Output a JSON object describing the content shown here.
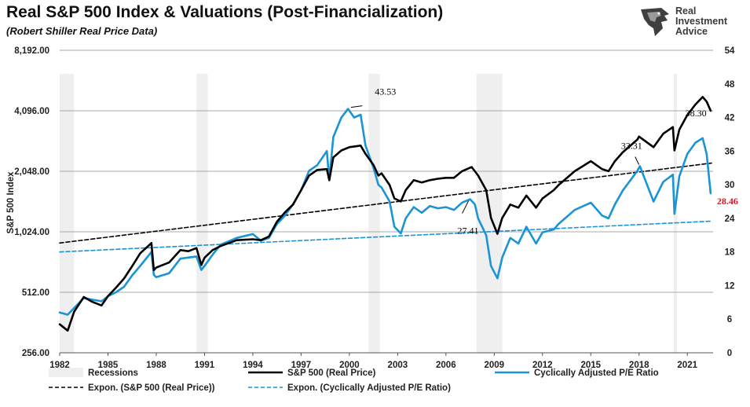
{
  "header": {
    "title": "Real S&P 500 Index & Valuations (Post-Financialization)",
    "subtitle": "(Robert Shiller Real Price Data)"
  },
  "logo": {
    "icon": "eagle-head-icon",
    "lines": [
      "Real",
      "Investment",
      "Advice"
    ]
  },
  "colors": {
    "sp500": "#000000",
    "cape": "#1a94d4",
    "recession": "#efefef",
    "grid": "#8c8c8c",
    "highlight": "#e0141e"
  },
  "chart_data": {
    "type": "line",
    "xlabel": "",
    "ylabel_left": "S&P 500 Index",
    "ylabel_right": "",
    "x_ticks": [
      1982,
      1985,
      1988,
      1991,
      1994,
      1997,
      2000,
      2003,
      2006,
      2009,
      2012,
      2015,
      2018,
      2021
    ],
    "xlim": [
      1982,
      2022.6
    ],
    "y_left_scale": "log2",
    "y_left_ticks": [
      "256.00",
      "512.00",
      "1,024.00",
      "2,048.00",
      "4,096.00",
      "8,192.00"
    ],
    "y_left_tick_values": [
      256,
      512,
      1024,
      2048,
      4096,
      8192
    ],
    "ylim_left": [
      256,
      8192
    ],
    "y_right_ticks": [
      "0",
      "6",
      "12",
      "18",
      "24",
      "30",
      "36",
      "42",
      "48",
      "54"
    ],
    "ylim_right": [
      0,
      54
    ],
    "grid": "horizontal",
    "legend_position": "bottom",
    "recessions": [
      [
        1982.0,
        1982.9
      ],
      [
        1990.5,
        1991.2
      ],
      [
        2001.2,
        2001.9
      ],
      [
        2007.9,
        2009.5
      ],
      [
        2020.15,
        2020.35
      ]
    ],
    "series": [
      {
        "name": "S&P 500 (Real Price)",
        "axis": "left",
        "style": "solid",
        "points": [
          [
            1982.0,
            355
          ],
          [
            1982.5,
            330
          ],
          [
            1982.9,
            410
          ],
          [
            1983.5,
            485
          ],
          [
            1984.0,
            460
          ],
          [
            1984.6,
            440
          ],
          [
            1985.0,
            490
          ],
          [
            1985.5,
            540
          ],
          [
            1986.0,
            600
          ],
          [
            1986.5,
            690
          ],
          [
            1987.0,
            800
          ],
          [
            1987.7,
            900
          ],
          [
            1987.85,
            660
          ],
          [
            1988.0,
            680
          ],
          [
            1988.8,
            720
          ],
          [
            1989.5,
            830
          ],
          [
            1990.0,
            820
          ],
          [
            1990.5,
            850
          ],
          [
            1990.8,
            700
          ],
          [
            1991.0,
            760
          ],
          [
            1991.5,
            830
          ],
          [
            1992.0,
            870
          ],
          [
            1993.0,
            930
          ],
          [
            1994.0,
            940
          ],
          [
            1994.5,
            930
          ],
          [
            1995.0,
            970
          ],
          [
            1995.5,
            1150
          ],
          [
            1996.0,
            1280
          ],
          [
            1996.5,
            1400
          ],
          [
            1997.0,
            1650
          ],
          [
            1997.5,
            1950
          ],
          [
            1998.0,
            2080
          ],
          [
            1998.6,
            2100
          ],
          [
            1998.75,
            1850
          ],
          [
            1999.0,
            2400
          ],
          [
            1999.5,
            2600
          ],
          [
            2000.0,
            2700
          ],
          [
            2000.7,
            2750
          ],
          [
            2001.0,
            2500
          ],
          [
            2001.5,
            2200
          ],
          [
            2001.8,
            1950
          ],
          [
            2002.0,
            2000
          ],
          [
            2002.5,
            1750
          ],
          [
            2002.8,
            1500
          ],
          [
            2003.2,
            1450
          ],
          [
            2003.5,
            1650
          ],
          [
            2004.0,
            1850
          ],
          [
            2004.5,
            1800
          ],
          [
            2005.0,
            1850
          ],
          [
            2005.5,
            1880
          ],
          [
            2006.0,
            1900
          ],
          [
            2006.5,
            1900
          ],
          [
            2007.0,
            2050
          ],
          [
            2007.6,
            2150
          ],
          [
            2008.0,
            1950
          ],
          [
            2008.5,
            1650
          ],
          [
            2008.8,
            1200
          ],
          [
            2009.2,
            1000
          ],
          [
            2009.5,
            1200
          ],
          [
            2010.0,
            1400
          ],
          [
            2010.5,
            1350
          ],
          [
            2011.0,
            1550
          ],
          [
            2011.6,
            1350
          ],
          [
            2012.0,
            1500
          ],
          [
            2012.7,
            1650
          ],
          [
            2013.0,
            1750
          ],
          [
            2014.0,
            2050
          ],
          [
            2015.0,
            2300
          ],
          [
            2015.7,
            2100
          ],
          [
            2016.1,
            2050
          ],
          [
            2016.5,
            2300
          ],
          [
            2017.0,
            2550
          ],
          [
            2017.9,
            2950
          ],
          [
            2018.0,
            3050
          ],
          [
            2018.9,
            2700
          ],
          [
            2019.5,
            3150
          ],
          [
            2020.1,
            3400
          ],
          [
            2020.2,
            2600
          ],
          [
            2020.5,
            3300
          ],
          [
            2021.0,
            3900
          ],
          [
            2021.5,
            4400
          ],
          [
            2021.95,
            4800
          ],
          [
            2022.2,
            4550
          ],
          [
            2022.45,
            4100
          ]
        ]
      },
      {
        "name": "Cyclically Adjusted P/E Ratio",
        "axis": "right",
        "style": "solid",
        "points": [
          [
            1982.0,
            7.2
          ],
          [
            1982.5,
            6.8
          ],
          [
            1982.9,
            8.0
          ],
          [
            1983.5,
            9.8
          ],
          [
            1984.0,
            9.5
          ],
          [
            1984.6,
            9.2
          ],
          [
            1985.0,
            10.1
          ],
          [
            1985.5,
            10.8
          ],
          [
            1986.0,
            11.8
          ],
          [
            1986.5,
            13.8
          ],
          [
            1987.0,
            15.5
          ],
          [
            1987.7,
            18.0
          ],
          [
            1987.85,
            13.9
          ],
          [
            1988.0,
            13.5
          ],
          [
            1988.8,
            14.2
          ],
          [
            1989.5,
            16.8
          ],
          [
            1990.0,
            17.0
          ],
          [
            1990.5,
            17.2
          ],
          [
            1990.8,
            14.8
          ],
          [
            1991.0,
            15.5
          ],
          [
            1991.5,
            17.5
          ],
          [
            1992.0,
            19.3
          ],
          [
            1993.0,
            20.5
          ],
          [
            1994.0,
            21.2
          ],
          [
            1994.5,
            20.0
          ],
          [
            1995.0,
            20.5
          ],
          [
            1995.5,
            23.0
          ],
          [
            1996.0,
            24.5
          ],
          [
            1996.5,
            26.5
          ],
          [
            1997.0,
            29.0
          ],
          [
            1997.5,
            32.5
          ],
          [
            1998.0,
            33.5
          ],
          [
            1998.6,
            36.0
          ],
          [
            1998.75,
            30.8
          ],
          [
            1999.0,
            38.5
          ],
          [
            1999.5,
            42.0
          ],
          [
            1999.92,
            43.53
          ],
          [
            2000.3,
            42.0
          ],
          [
            2000.7,
            42.5
          ],
          [
            2001.0,
            37.0
          ],
          [
            2001.5,
            33.0
          ],
          [
            2001.8,
            30.0
          ],
          [
            2002.0,
            29.5
          ],
          [
            2002.5,
            27.0
          ],
          [
            2002.8,
            22.5
          ],
          [
            2003.2,
            21.3
          ],
          [
            2003.5,
            24.0
          ],
          [
            2004.0,
            26.0
          ],
          [
            2004.5,
            25.0
          ],
          [
            2005.0,
            26.2
          ],
          [
            2005.5,
            25.8
          ],
          [
            2006.0,
            26.0
          ],
          [
            2006.5,
            25.5
          ],
          [
            2007.0,
            26.8
          ],
          [
            2007.5,
            27.4
          ],
          [
            2007.8,
            26.5
          ],
          [
            2008.0,
            24.0
          ],
          [
            2008.5,
            21.0
          ],
          [
            2008.8,
            15.5
          ],
          [
            2009.2,
            13.3
          ],
          [
            2009.5,
            17.0
          ],
          [
            2010.0,
            20.5
          ],
          [
            2010.5,
            19.5
          ],
          [
            2011.0,
            22.5
          ],
          [
            2011.6,
            19.5
          ],
          [
            2012.0,
            21.5
          ],
          [
            2012.7,
            22.0
          ],
          [
            2013.0,
            23.0
          ],
          [
            2014.0,
            25.5
          ],
          [
            2015.0,
            26.8
          ],
          [
            2015.7,
            24.5
          ],
          [
            2016.1,
            24.0
          ],
          [
            2016.5,
            26.5
          ],
          [
            2017.0,
            29.0
          ],
          [
            2017.9,
            32.5
          ],
          [
            2018.05,
            33.31
          ],
          [
            2018.9,
            27.0
          ],
          [
            2019.5,
            30.5
          ],
          [
            2020.1,
            31.8
          ],
          [
            2020.2,
            24.8
          ],
          [
            2020.5,
            31.5
          ],
          [
            2021.0,
            35.5
          ],
          [
            2021.5,
            37.5
          ],
          [
            2021.95,
            38.3
          ],
          [
            2022.2,
            35.5
          ],
          [
            2022.45,
            28.46
          ]
        ]
      },
      {
        "name": "Expon. (S&P 500 (Real Price))",
        "axis": "left",
        "style": "dashed",
        "points": [
          [
            1982.0,
            900
          ],
          [
            2022.5,
            2250
          ]
        ]
      },
      {
        "name": "Expon. (Cyclically Adjusted P/E Ratio)",
        "axis": "right",
        "style": "dashed",
        "points": [
          [
            1982.0,
            18.0
          ],
          [
            2022.5,
            23.5
          ]
        ]
      }
    ],
    "legend": [
      {
        "label": "Recessions",
        "kind": "swatch"
      },
      {
        "label": "S&P 500 (Real Price)",
        "kind": "line-black"
      },
      {
        "label": "Cyclically Adjusted P/E Ratio",
        "kind": "line-blue"
      },
      {
        "label": "Expon. (S&P 500 (Real Price))",
        "kind": "dash-black"
      },
      {
        "label": "Expon. (Cyclically Adjusted P/E Ratio)",
        "kind": "dash-blue"
      }
    ],
    "annotations": [
      {
        "text": "43.53",
        "x": 1999.92,
        "y": 43.53,
        "axis": "right",
        "pointer": true
      },
      {
        "text": "27.41",
        "x": 2007.5,
        "y": 27.41,
        "axis": "right",
        "pointer": true
      },
      {
        "text": "33.31",
        "x": 2018.05,
        "y": 33.31,
        "axis": "right",
        "pointer": true
      },
      {
        "text": "38.30",
        "x": 2021.95,
        "y": 38.3,
        "axis": "right",
        "pointer": false
      },
      {
        "text": "28.46",
        "x": 2022.45,
        "y": 28.46,
        "axis": "right",
        "pointer": false,
        "highlight": true
      }
    ]
  }
}
